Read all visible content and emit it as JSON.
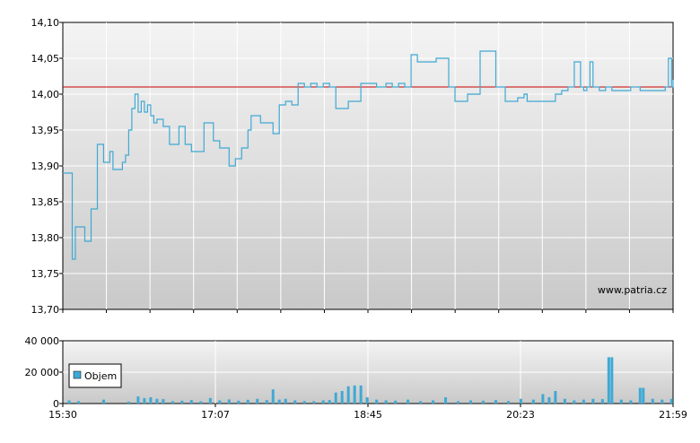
{
  "colors": {
    "price_line": "#3fa9d4",
    "reference_line": "#cc0000",
    "grid": "#ffffff",
    "plot_bg_top": "#f4f4f4",
    "plot_bg_bottom": "#c9c9c9",
    "volume_bar": "#3fa9d4"
  },
  "watermark": "www.patria.cz",
  "chart_data": [
    {
      "type": "line",
      "series": [
        {
          "x": [
            "15:30",
            "15:34",
            "15:36",
            "15:38",
            "15:40",
            "15:44",
            "15:48",
            "15:52",
            "15:54",
            "15:56",
            "15:58",
            "16:00",
            "16:02",
            "16:06",
            "16:08",
            "16:10",
            "16:12",
            "16:14",
            "16:16",
            "16:18",
            "16:20",
            "16:22",
            "16:24",
            "16:26",
            "16:28",
            "16:30",
            "16:34",
            "16:38",
            "16:40",
            "16:44",
            "16:48",
            "16:52",
            "16:56",
            "17:00",
            "17:04",
            "17:06",
            "17:08",
            "17:10",
            "17:12",
            "17:16",
            "17:20",
            "17:24",
            "17:28",
            "17:30",
            "17:36",
            "17:44",
            "17:48",
            "17:52",
            "17:56",
            "18:00",
            "18:04",
            "18:08",
            "18:12",
            "18:16",
            "18:20",
            "18:24",
            "18:28",
            "18:32",
            "18:36",
            "18:40",
            "18:44",
            "18:46",
            "18:50",
            "18:56",
            "19:00",
            "19:04",
            "19:08",
            "19:12",
            "19:16",
            "19:20",
            "19:28",
            "19:36",
            "19:40",
            "19:44",
            "19:48",
            "19:52",
            "19:56",
            "20:00",
            "20:06",
            "20:12",
            "20:16",
            "20:20",
            "20:24",
            "20:26",
            "20:30",
            "20:34",
            "20:36",
            "20:40",
            "20:44",
            "20:48",
            "20:52",
            "20:56",
            "21:00",
            "21:02",
            "21:04",
            "21:06",
            "21:08",
            "21:12",
            "21:16",
            "21:20",
            "21:26",
            "21:32",
            "21:38",
            "21:42",
            "21:46",
            "21:50",
            "21:54",
            "21:56",
            "21:58",
            "21:59"
          ],
          "values": [
            13.89,
            13.89,
            13.77,
            13.815,
            13.815,
            13.795,
            13.84,
            13.93,
            13.93,
            13.905,
            13.905,
            13.92,
            13.895,
            13.895,
            13.905,
            13.915,
            13.95,
            13.98,
            14.0,
            13.975,
            13.99,
            13.975,
            13.985,
            13.97,
            13.96,
            13.965,
            13.955,
            13.93,
            13.93,
            13.955,
            13.93,
            13.92,
            13.92,
            13.96,
            13.96,
            13.935,
            13.935,
            13.925,
            13.925,
            13.9,
            13.91,
            13.925,
            13.95,
            13.97,
            13.96,
            13.945,
            13.985,
            13.99,
            13.985,
            14.015,
            14.01,
            14.015,
            14.01,
            14.015,
            14.01,
            13.98,
            13.98,
            13.99,
            13.99,
            14.015,
            14.015,
            14.015,
            14.01,
            14.015,
            14.01,
            14.015,
            14.01,
            14.055,
            14.045,
            14.045,
            14.05,
            14.01,
            13.99,
            13.99,
            14.0,
            14.0,
            14.06,
            14.06,
            14.01,
            13.99,
            13.99,
            13.995,
            14.0,
            13.99,
            13.99,
            13.99,
            13.99,
            13.99,
            14.0,
            14.005,
            14.01,
            14.045,
            14.01,
            14.005,
            14.01,
            14.045,
            14.01,
            14.005,
            14.01,
            14.005,
            14.005,
            14.01,
            14.005,
            14.005,
            14.005,
            14.005,
            14.01,
            14.05,
            14.01,
            14.02
          ]
        }
      ],
      "reference_line": 14.01,
      "ylim": [
        13.7,
        14.1
      ],
      "y_ticks": [
        "14,10",
        "14,05",
        "14,00",
        "13,95",
        "13,90",
        "13,85",
        "13,80",
        "13,75",
        "13,70"
      ],
      "x_ticks": [
        "15:30",
        "17:07",
        "18:45",
        "20:23",
        "21:59"
      ],
      "grid": true
    },
    {
      "type": "bar",
      "legend": [
        "Objem"
      ],
      "ylim": [
        0,
        40000
      ],
      "y_ticks": [
        "40 000",
        "20 000",
        "0"
      ],
      "x_ticks": [
        "15:30",
        "17:07",
        "18:45",
        "20:23",
        "21:59"
      ],
      "volume_profile": [
        {
          "x": "15:34",
          "v": 2000
        },
        {
          "x": "15:40",
          "v": 1500
        },
        {
          "x": "15:56",
          "v": 2500
        },
        {
          "x": "16:12",
          "v": 1200
        },
        {
          "x": "16:18",
          "v": 4500
        },
        {
          "x": "16:22",
          "v": 3500
        },
        {
          "x": "16:26",
          "v": 4000
        },
        {
          "x": "16:30",
          "v": 3000
        },
        {
          "x": "16:34",
          "v": 2800
        },
        {
          "x": "16:40",
          "v": 1500
        },
        {
          "x": "16:46",
          "v": 1800
        },
        {
          "x": "16:52",
          "v": 2200
        },
        {
          "x": "16:58",
          "v": 1400
        },
        {
          "x": "17:04",
          "v": 3500
        },
        {
          "x": "17:10",
          "v": 2000
        },
        {
          "x": "17:16",
          "v": 2600
        },
        {
          "x": "17:22",
          "v": 1800
        },
        {
          "x": "17:28",
          "v": 2400
        },
        {
          "x": "17:34",
          "v": 3000
        },
        {
          "x": "17:40",
          "v": 2200
        },
        {
          "x": "17:44",
          "v": 9000
        },
        {
          "x": "17:48",
          "v": 2500
        },
        {
          "x": "17:52",
          "v": 3000
        },
        {
          "x": "17:58",
          "v": 2000
        },
        {
          "x": "18:04",
          "v": 1600
        },
        {
          "x": "18:10",
          "v": 1500
        },
        {
          "x": "18:16",
          "v": 2000
        },
        {
          "x": "18:20",
          "v": 2200
        },
        {
          "x": "18:24",
          "v": 7000
        },
        {
          "x": "18:28",
          "v": 8000
        },
        {
          "x": "18:32",
          "v": 11000
        },
        {
          "x": "18:36",
          "v": 11500
        },
        {
          "x": "18:40",
          "v": 11500
        },
        {
          "x": "18:44",
          "v": 4000
        },
        {
          "x": "18:50",
          "v": 2500
        },
        {
          "x": "18:56",
          "v": 2000
        },
        {
          "x": "19:02",
          "v": 1800
        },
        {
          "x": "19:10",
          "v": 2500
        },
        {
          "x": "19:18",
          "v": 1500
        },
        {
          "x": "19:26",
          "v": 2000
        },
        {
          "x": "19:34",
          "v": 4000
        },
        {
          "x": "19:42",
          "v": 1500
        },
        {
          "x": "19:50",
          "v": 2000
        },
        {
          "x": "19:58",
          "v": 1800
        },
        {
          "x": "20:06",
          "v": 2200
        },
        {
          "x": "20:14",
          "v": 1600
        },
        {
          "x": "20:22",
          "v": 3000
        },
        {
          "x": "20:30",
          "v": 2500
        },
        {
          "x": "20:36",
          "v": 6000
        },
        {
          "x": "20:40",
          "v": 4000
        },
        {
          "x": "20:44",
          "v": 8000
        },
        {
          "x": "20:50",
          "v": 3000
        },
        {
          "x": "20:56",
          "v": 2000
        },
        {
          "x": "21:02",
          "v": 2500
        },
        {
          "x": "21:08",
          "v": 3000
        },
        {
          "x": "21:14",
          "v": 2800
        },
        {
          "x": "21:18",
          "v": 29500
        },
        {
          "x": "21:20",
          "v": 29500
        },
        {
          "x": "21:26",
          "v": 2500
        },
        {
          "x": "21:32",
          "v": 2000
        },
        {
          "x": "21:38",
          "v": 10000
        },
        {
          "x": "21:40",
          "v": 10000
        },
        {
          "x": "21:46",
          "v": 3000
        },
        {
          "x": "21:52",
          "v": 2500
        },
        {
          "x": "21:58",
          "v": 3000
        }
      ]
    }
  ]
}
